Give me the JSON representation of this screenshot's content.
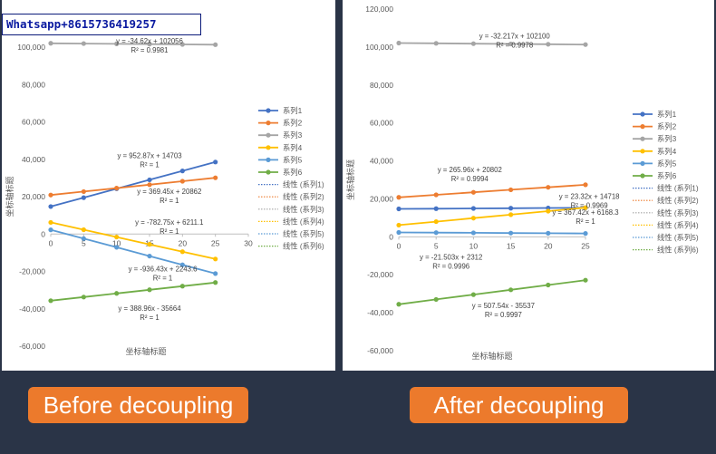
{
  "watermark": "Whatsapp+8615736419257",
  "captions": [
    "Before decoupling",
    "After decoupling"
  ],
  "chart_data": [
    {
      "type": "line",
      "title": "",
      "xlabel": "坐标轴标题",
      "ylabel": "坐标轴标题",
      "xlim": [
        0,
        30
      ],
      "ylim": [
        -60000,
        110000
      ],
      "x_ticks": [
        0,
        5,
        10,
        15,
        20,
        25,
        30
      ],
      "y_ticks": [
        -60000,
        -40000,
        -20000,
        0,
        20000,
        40000,
        60000,
        80000,
        100000
      ],
      "grid": false,
      "legend": "right",
      "x": [
        0,
        5,
        10,
        15,
        20,
        25
      ],
      "series": [
        {
          "name": "系列1",
          "color": "#4472c4",
          "values": [
            14703,
            19467,
            24232,
            28996,
            33760,
            38525
          ]
        },
        {
          "name": "系列2",
          "color": "#ed7d31",
          "values": [
            20862,
            22709,
            24557,
            26404,
            28251,
            30098
          ]
        },
        {
          "name": "系列3",
          "color": "#a5a5a5",
          "values": [
            102056,
            101900,
            101750,
            101600,
            101450,
            101300
          ]
        },
        {
          "name": "系列4",
          "color": "#ffc000",
          "values": [
            6211,
            2297,
            -1617,
            -5530,
            -9444,
            -13358
          ]
        },
        {
          "name": "系列5",
          "color": "#5b9bd5",
          "values": [
            2243,
            -2439,
            -7121,
            -11803,
            -16485,
            -21167
          ]
        },
        {
          "name": "系列6",
          "color": "#70ad47",
          "values": [
            -35664,
            -33719,
            -31774,
            -29830,
            -27885,
            -25940
          ]
        }
      ],
      "trendline_legend": [
        "线性 (系列1)",
        "线性 (系列2)",
        "线性 (系列3)",
        "线性 (系列4)",
        "线性 (系列5)",
        "线性 (系列6)"
      ],
      "annotations": [
        {
          "series": "系列3",
          "equation": "y = -34.62x + 102056",
          "r2": "R² = 0.9981",
          "at": [
            15,
            102056
          ]
        },
        {
          "series": "系列1",
          "equation": "y = 952.87x + 14703",
          "r2": "R² = 1",
          "at": [
            15,
            40500
          ]
        },
        {
          "series": "系列2",
          "equation": "y = 369.45x + 20862",
          "r2": "R² = 1",
          "at": [
            18,
            21500
          ]
        },
        {
          "series": "系列4",
          "equation": "y = -782.75x + 6211.1",
          "r2": "R² = 1",
          "at": [
            18,
            5000
          ]
        },
        {
          "series": "系列5",
          "equation": "y = -936.43x + 2243.6",
          "r2": "R² = 1",
          "at": [
            17,
            -20000
          ]
        },
        {
          "series": "系列6",
          "equation": "y = 388.96x - 35664",
          "r2": "R² = 1",
          "at": [
            15,
            -41000
          ]
        }
      ]
    },
    {
      "type": "line",
      "title": "",
      "xlabel": "坐标轴标题",
      "ylabel": "坐标轴标题",
      "xlim": [
        0,
        25
      ],
      "ylim": [
        -60000,
        120000
      ],
      "x_ticks": [
        0,
        5,
        10,
        15,
        20,
        25
      ],
      "y_ticks": [
        -60000,
        -40000,
        -20000,
        0,
        20000,
        40000,
        60000,
        80000,
        100000,
        120000
      ],
      "grid": false,
      "legend": "right",
      "x": [
        0,
        5,
        10,
        15,
        20,
        25
      ],
      "series": [
        {
          "name": "系列1",
          "color": "#4472c4",
          "values": [
            14718,
            14835,
            14951,
            15068,
            15184,
            15301
          ]
        },
        {
          "name": "系列2",
          "color": "#ed7d31",
          "values": [
            20802,
            22127,
            23452,
            24776,
            26101,
            27426
          ]
        },
        {
          "name": "系列3",
          "color": "#a5a5a5",
          "values": [
            102100,
            101939,
            101778,
            101617,
            101456,
            101295
          ]
        },
        {
          "name": "系列4",
          "color": "#ffc000",
          "values": [
            6168,
            8005,
            9843,
            11680,
            13516,
            15354
          ]
        },
        {
          "name": "系列5",
          "color": "#5b9bd5",
          "values": [
            2312,
            2204,
            2097,
            1989,
            1882,
            1774
          ]
        },
        {
          "name": "系列6",
          "color": "#70ad47",
          "values": [
            -35537,
            -33000,
            -30462,
            -27924,
            -25386,
            -22849
          ]
        }
      ],
      "trendline_legend": [
        "线性 (系列1)",
        "线性 (系列2)",
        "线性 (系列3)",
        "线性 (系列4)",
        "线性 (系列5)",
        "线性 (系列6)"
      ],
      "annotations": [
        {
          "series": "系列3",
          "equation": "y = -32.217x + 102100",
          "r2": "R² = 0.9978",
          "at": [
            15.5,
            104500
          ]
        },
        {
          "series": "系列2",
          "equation": "y = 265.96x + 20802",
          "r2": "R² = 0.9994",
          "at": [
            9.5,
            34000
          ]
        },
        {
          "series": "系列1",
          "equation": "y = 23.32x + 14718",
          "r2": "R² = 0.9969",
          "at": [
            25.5,
            20000
          ]
        },
        {
          "series": "系列4",
          "equation": "y = 367.42x + 6168.3",
          "r2": "R² = 1",
          "at": [
            25,
            11500
          ]
        },
        {
          "series": "系列5",
          "equation": "y = -21.503x + 2312",
          "r2": "R² = 0.9996",
          "at": [
            7,
            -12000
          ]
        },
        {
          "series": "系列6",
          "equation": "y = 507.54x - 35537",
          "r2": "R² = 0.9997",
          "at": [
            14,
            -37500
          ]
        }
      ]
    }
  ]
}
